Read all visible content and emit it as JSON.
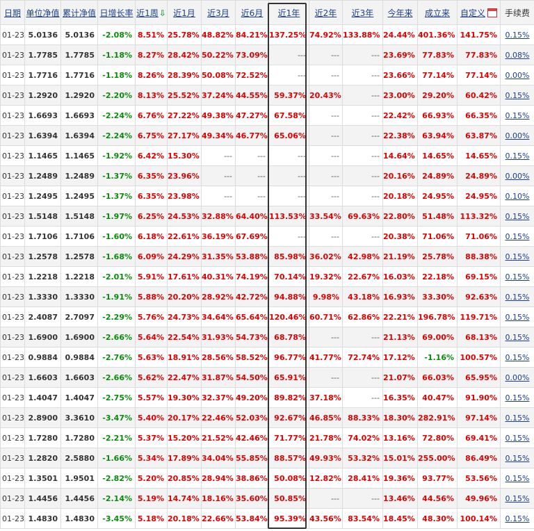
{
  "headers": [
    {
      "label": "日期",
      "link": true
    },
    {
      "label": "单位净值",
      "link": true
    },
    {
      "label": "累计净值",
      "link": true
    },
    {
      "label": "日增长率",
      "link": true
    },
    {
      "label": "近1周",
      "link": true,
      "sorted": "desc"
    },
    {
      "label": "近1月",
      "link": true
    },
    {
      "label": "近3月",
      "link": true
    },
    {
      "label": "近6月",
      "link": true
    },
    {
      "label": "近1年",
      "link": true
    },
    {
      "label": "近2年",
      "link": true
    },
    {
      "label": "近3年",
      "link": true
    },
    {
      "label": "今年来",
      "link": true
    },
    {
      "label": "成立来",
      "link": true
    },
    {
      "label": "自定义",
      "link": true,
      "icon": "calendar-icon"
    },
    {
      "label": "手续费",
      "link": false
    }
  ],
  "highlighted_column": "近1年",
  "rows": [
    [
      "01-23",
      "5.0136",
      "5.0136",
      "-2.08%",
      "8.51%",
      "25.78%",
      "48.82%",
      "84.21%",
      "137.25%",
      "74.92%",
      "133.88%",
      "24.44%",
      "401.36%",
      "141.75%",
      "0.15%"
    ],
    [
      "01-23",
      "1.7785",
      "1.7785",
      "-1.18%",
      "8.27%",
      "28.42%",
      "50.22%",
      "73.09%",
      "---",
      "---",
      "---",
      "23.69%",
      "77.83%",
      "77.83%",
      "0.08%"
    ],
    [
      "01-23",
      "1.7716",
      "1.7716",
      "-1.18%",
      "8.26%",
      "28.39%",
      "50.08%",
      "72.52%",
      "---",
      "---",
      "---",
      "23.66%",
      "77.14%",
      "77.14%",
      "0.00%"
    ],
    [
      "01-23",
      "1.2920",
      "1.2920",
      "-2.20%",
      "8.13%",
      "25.52%",
      "37.24%",
      "44.55%",
      "59.37%",
      "20.43%",
      "---",
      "23.00%",
      "29.20%",
      "60.42%",
      "0.15%"
    ],
    [
      "01-23",
      "1.6693",
      "1.6693",
      "-2.24%",
      "6.76%",
      "27.22%",
      "49.38%",
      "47.27%",
      "67.58%",
      "---",
      "---",
      "22.42%",
      "66.93%",
      "66.35%",
      "0.15%"
    ],
    [
      "01-23",
      "1.6394",
      "1.6394",
      "-2.24%",
      "6.75%",
      "27.17%",
      "49.34%",
      "46.77%",
      "65.06%",
      "---",
      "---",
      "22.38%",
      "63.94%",
      "63.87%",
      "0.00%"
    ],
    [
      "01-23",
      "1.1465",
      "1.1465",
      "-1.92%",
      "6.42%",
      "15.30%",
      "---",
      "---",
      "---",
      "---",
      "---",
      "14.64%",
      "14.65%",
      "14.65%",
      "0.15%"
    ],
    [
      "01-23",
      "1.2489",
      "1.2489",
      "-1.37%",
      "6.35%",
      "23.96%",
      "---",
      "---",
      "---",
      "---",
      "---",
      "20.16%",
      "24.89%",
      "24.89%",
      "0.00%"
    ],
    [
      "01-23",
      "1.2495",
      "1.2495",
      "-1.37%",
      "6.35%",
      "23.98%",
      "---",
      "---",
      "---",
      "---",
      "---",
      "20.18%",
      "24.95%",
      "24.95%",
      "0.10%"
    ],
    [
      "01-23",
      "1.5148",
      "1.5148",
      "-1.97%",
      "6.25%",
      "24.53%",
      "32.88%",
      "64.40%",
      "113.53%",
      "33.54%",
      "69.63%",
      "22.80%",
      "51.48%",
      "113.32%",
      "0.15%"
    ],
    [
      "01-23",
      "1.7106",
      "1.7106",
      "-1.60%",
      "6.18%",
      "22.61%",
      "36.19%",
      "67.69%",
      "---",
      "---",
      "---",
      "20.38%",
      "71.06%",
      "71.06%",
      "0.15%"
    ],
    [
      "01-23",
      "1.2578",
      "1.2578",
      "-1.68%",
      "6.09%",
      "24.29%",
      "31.35%",
      "53.88%",
      "85.98%",
      "36.02%",
      "42.98%",
      "21.19%",
      "25.78%",
      "88.38%",
      "0.15%"
    ],
    [
      "01-23",
      "1.2218",
      "1.2218",
      "-2.01%",
      "5.91%",
      "17.61%",
      "40.31%",
      "74.19%",
      "70.14%",
      "19.32%",
      "22.67%",
      "16.03%",
      "22.18%",
      "69.15%",
      "0.15%"
    ],
    [
      "01-23",
      "1.3330",
      "1.3330",
      "-1.91%",
      "5.88%",
      "20.20%",
      "28.92%",
      "42.72%",
      "94.88%",
      "9.98%",
      "43.18%",
      "16.93%",
      "33.30%",
      "92.63%",
      "0.15%"
    ],
    [
      "01-23",
      "2.4087",
      "2.7097",
      "-2.29%",
      "5.76%",
      "24.73%",
      "34.64%",
      "65.64%",
      "120.46%",
      "60.71%",
      "62.86%",
      "22.21%",
      "196.78%",
      "119.71%",
      "0.15%"
    ],
    [
      "01-23",
      "1.6900",
      "1.6900",
      "-2.66%",
      "5.64%",
      "22.54%",
      "31.93%",
      "54.73%",
      "68.78%",
      "---",
      "---",
      "21.13%",
      "69.00%",
      "68.13%",
      "0.15%"
    ],
    [
      "01-23",
      "0.9884",
      "0.9884",
      "-2.76%",
      "5.63%",
      "18.91%",
      "28.56%",
      "58.52%",
      "96.77%",
      "41.77%",
      "72.74%",
      "17.12%",
      "-1.16%",
      "100.57%",
      "0.15%"
    ],
    [
      "01-23",
      "1.6603",
      "1.6603",
      "-2.66%",
      "5.62%",
      "22.47%",
      "31.87%",
      "54.50%",
      "65.91%",
      "---",
      "---",
      "21.07%",
      "66.03%",
      "65.95%",
      "0.00%"
    ],
    [
      "01-23",
      "1.4047",
      "1.4047",
      "-2.75%",
      "5.57%",
      "19.30%",
      "32.37%",
      "49.20%",
      "89.82%",
      "37.18%",
      "---",
      "16.35%",
      "40.47%",
      "91.90%",
      "0.15%"
    ],
    [
      "01-23",
      "2.8900",
      "3.3610",
      "-3.47%",
      "5.40%",
      "20.17%",
      "22.46%",
      "52.03%",
      "92.67%",
      "46.85%",
      "88.33%",
      "18.30%",
      "282.91%",
      "97.14%",
      "0.15%"
    ],
    [
      "01-23",
      "1.7280",
      "1.7280",
      "-2.21%",
      "5.37%",
      "15.20%",
      "21.52%",
      "42.46%",
      "71.77%",
      "21.78%",
      "74.02%",
      "13.16%",
      "72.80%",
      "69.41%",
      "0.15%"
    ],
    [
      "01-23",
      "1.2820",
      "2.5880",
      "-1.66%",
      "5.34%",
      "17.89%",
      "34.04%",
      "55.85%",
      "88.57%",
      "49.93%",
      "53.32%",
      "15.01%",
      "255.00%",
      "86.49%",
      "0.15%"
    ],
    [
      "01-23",
      "1.3501",
      "1.9501",
      "-2.82%",
      "5.20%",
      "20.85%",
      "28.94%",
      "38.86%",
      "50.08%",
      "12.82%",
      "28.41%",
      "19.36%",
      "93.77%",
      "53.56%",
      "0.15%"
    ],
    [
      "01-23",
      "1.4456",
      "1.4456",
      "-2.14%",
      "5.19%",
      "14.74%",
      "18.16%",
      "35.60%",
      "50.85%",
      "---",
      "---",
      "13.46%",
      "44.56%",
      "49.96%",
      "0.15%"
    ],
    [
      "01-23",
      "1.4830",
      "1.4830",
      "-3.45%",
      "5.18%",
      "20.18%",
      "22.66%",
      "53.84%",
      "95.39%",
      "43.56%",
      "83.54%",
      "18.45%",
      "48.30%",
      "100.14%",
      "0.15%"
    ]
  ],
  "colors": {
    "positive": "#e00000",
    "negative": "#0a8a0a",
    "link": "#1a3f8f",
    "highlight_border": "#333333"
  }
}
